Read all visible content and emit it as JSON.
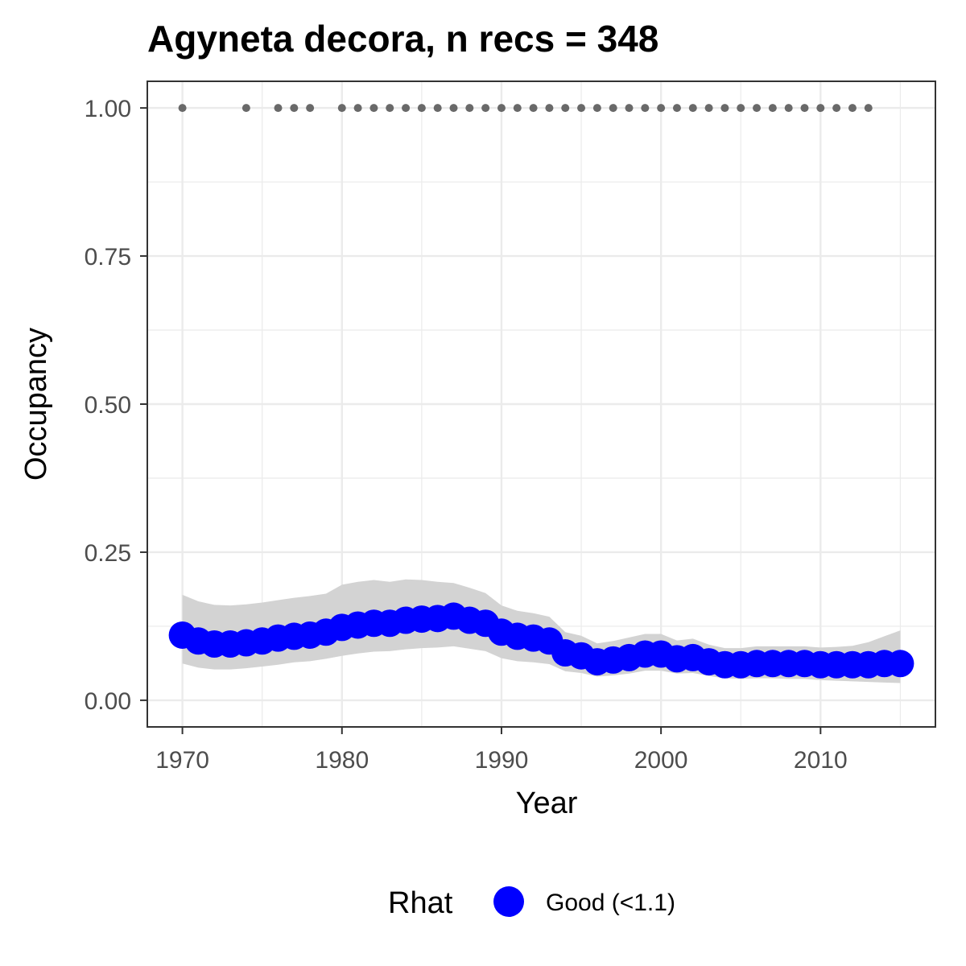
{
  "chart_data": {
    "type": "line",
    "title": "Agyneta decora, n recs = 348",
    "xlabel": "Year",
    "ylabel": "Occupancy",
    "xlim": [
      1967.8,
      1971.0
    ],
    "x_ticks": [
      1970,
      1980,
      1990,
      2000,
      2010
    ],
    "x_tick_labels": [
      "1970",
      "1980",
      "1990",
      "2000",
      "2010"
    ],
    "ylim": [
      -0.045,
      1.045
    ],
    "y_ticks": [
      0.0,
      0.25,
      0.5,
      0.75,
      1.0
    ],
    "y_tick_labels": [
      "0.00",
      "0.25",
      "0.50",
      "0.75",
      "1.00"
    ],
    "grid": true,
    "legend": {
      "position": "bottom",
      "title": "Rhat",
      "entries": [
        {
          "label": "Good (<1.1)",
          "color": "#0000ff"
        }
      ]
    },
    "occupancy": {
      "x": [
        1970,
        1971,
        1972,
        1973,
        1974,
        1975,
        1976,
        1977,
        1978,
        1979,
        1980,
        1981,
        1982,
        1983,
        1984,
        1985,
        1986,
        1987,
        1988,
        1989,
        1990,
        1991,
        1992,
        1993,
        1994,
        1995,
        1996,
        1997,
        1998,
        1999,
        2000,
        2001,
        2002,
        2003,
        2004,
        2005,
        2006,
        2007,
        2008,
        2009,
        2010,
        2011,
        2012,
        2013,
        2014,
        2015
      ],
      "y": [
        0.11,
        0.1,
        0.095,
        0.095,
        0.097,
        0.1,
        0.105,
        0.108,
        0.11,
        0.115,
        0.123,
        0.127,
        0.13,
        0.13,
        0.135,
        0.137,
        0.138,
        0.142,
        0.135,
        0.13,
        0.115,
        0.108,
        0.105,
        0.1,
        0.08,
        0.075,
        0.065,
        0.068,
        0.072,
        0.078,
        0.078,
        0.07,
        0.072,
        0.065,
        0.06,
        0.06,
        0.062,
        0.062,
        0.062,
        0.062,
        0.06,
        0.06,
        0.06,
        0.06,
        0.062,
        0.062
      ],
      "lower": [
        0.062,
        0.055,
        0.052,
        0.052,
        0.054,
        0.057,
        0.06,
        0.064,
        0.066,
        0.07,
        0.075,
        0.079,
        0.082,
        0.083,
        0.086,
        0.088,
        0.089,
        0.091,
        0.087,
        0.083,
        0.071,
        0.066,
        0.064,
        0.061,
        0.049,
        0.046,
        0.04,
        0.042,
        0.045,
        0.05,
        0.05,
        0.045,
        0.046,
        0.041,
        0.037,
        0.036,
        0.037,
        0.037,
        0.036,
        0.036,
        0.034,
        0.033,
        0.032,
        0.031,
        0.03,
        0.029
      ],
      "upper": [
        0.178,
        0.167,
        0.161,
        0.16,
        0.162,
        0.165,
        0.169,
        0.173,
        0.176,
        0.18,
        0.195,
        0.2,
        0.203,
        0.2,
        0.204,
        0.203,
        0.2,
        0.198,
        0.19,
        0.181,
        0.16,
        0.151,
        0.147,
        0.141,
        0.115,
        0.109,
        0.096,
        0.1,
        0.106,
        0.112,
        0.112,
        0.101,
        0.104,
        0.094,
        0.088,
        0.088,
        0.091,
        0.091,
        0.091,
        0.091,
        0.089,
        0.09,
        0.092,
        0.098,
        0.108,
        0.118
      ],
      "color": "#0000ff",
      "ribbon_color": "#d3d3d3"
    },
    "records": {
      "x": [
        1970,
        1974,
        1976,
        1977,
        1978,
        1980,
        1981,
        1982,
        1983,
        1984,
        1985,
        1986,
        1987,
        1988,
        1989,
        1990,
        1991,
        1992,
        1993,
        1994,
        1995,
        1996,
        1997,
        1998,
        1999,
        2000,
        2001,
        2002,
        2003,
        2004,
        2005,
        2006,
        2007,
        2008,
        2009,
        2010,
        2011,
        2012,
        2013
      ],
      "y": 1.0,
      "color": "#696969"
    }
  }
}
